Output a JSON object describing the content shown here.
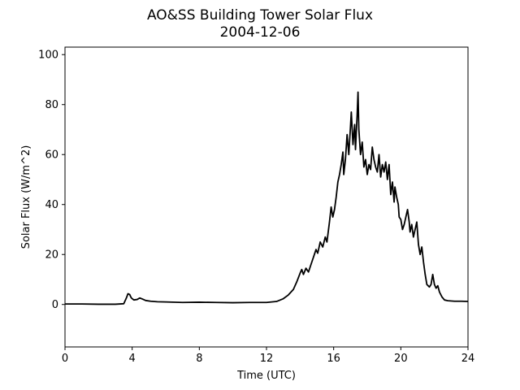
{
  "chart_data": {
    "type": "line",
    "title": "AO&SS Building Tower Solar Flux",
    "subtitle": "2004-12-06",
    "xlabel": "Time (UTC)",
    "ylabel": "Solar Flux (W/m^2)",
    "xlim": [
      0,
      24
    ],
    "ylim": [
      -17,
      103
    ],
    "xticks": [
      0,
      4,
      8,
      12,
      16,
      20,
      24
    ],
    "yticks": [
      0,
      20,
      40,
      60,
      80,
      100
    ],
    "grid": false,
    "series": [
      {
        "color": "#000000",
        "points": [
          [
            0.0,
            0.2
          ],
          [
            1.0,
            0.2
          ],
          [
            2.0,
            0.1
          ],
          [
            3.0,
            0.1
          ],
          [
            3.5,
            0.3
          ],
          [
            3.65,
            2.5
          ],
          [
            3.75,
            4.3
          ],
          [
            3.85,
            4.0
          ],
          [
            3.95,
            2.6
          ],
          [
            4.1,
            1.8
          ],
          [
            4.3,
            2.0
          ],
          [
            4.45,
            2.6
          ],
          [
            4.6,
            2.2
          ],
          [
            4.8,
            1.6
          ],
          [
            5.1,
            1.3
          ],
          [
            5.5,
            1.1
          ],
          [
            6.0,
            1.0
          ],
          [
            7.0,
            0.8
          ],
          [
            8.0,
            0.9
          ],
          [
            9.0,
            0.8
          ],
          [
            10.0,
            0.7
          ],
          [
            11.0,
            0.8
          ],
          [
            12.0,
            0.8
          ],
          [
            12.6,
            1.2
          ],
          [
            13.0,
            2.3
          ],
          [
            13.3,
            3.8
          ],
          [
            13.6,
            6.0
          ],
          [
            13.8,
            9.0
          ],
          [
            14.0,
            12.5
          ],
          [
            14.1,
            14.0
          ],
          [
            14.2,
            12.0
          ],
          [
            14.35,
            14.5
          ],
          [
            14.5,
            13.0
          ],
          [
            14.65,
            16.0
          ],
          [
            14.8,
            19.0
          ],
          [
            14.95,
            22.0
          ],
          [
            15.05,
            20.5
          ],
          [
            15.2,
            25.0
          ],
          [
            15.35,
            23.0
          ],
          [
            15.5,
            27.0
          ],
          [
            15.6,
            25.0
          ],
          [
            15.75,
            33.0
          ],
          [
            15.85,
            39.0
          ],
          [
            15.95,
            35.0
          ],
          [
            16.05,
            38.0
          ],
          [
            16.15,
            43.0
          ],
          [
            16.25,
            49.0
          ],
          [
            16.35,
            52.0
          ],
          [
            16.45,
            56.0
          ],
          [
            16.55,
            61.0
          ],
          [
            16.6,
            52.0
          ],
          [
            16.7,
            58.0
          ],
          [
            16.8,
            68.0
          ],
          [
            16.9,
            60.0
          ],
          [
            17.0,
            71.0
          ],
          [
            17.05,
            77.0
          ],
          [
            17.15,
            64.0
          ],
          [
            17.25,
            72.0
          ],
          [
            17.3,
            62.0
          ],
          [
            17.4,
            76.0
          ],
          [
            17.45,
            85.0
          ],
          [
            17.5,
            70.0
          ],
          [
            17.6,
            60.0
          ],
          [
            17.7,
            65.0
          ],
          [
            17.8,
            55.0
          ],
          [
            17.9,
            58.0
          ],
          [
            18.0,
            52.0
          ],
          [
            18.1,
            56.0
          ],
          [
            18.2,
            54.0
          ],
          [
            18.3,
            63.0
          ],
          [
            18.4,
            58.0
          ],
          [
            18.5,
            55.0
          ],
          [
            18.6,
            53.0
          ],
          [
            18.7,
            60.0
          ],
          [
            18.8,
            51.0
          ],
          [
            18.9,
            56.0
          ],
          [
            19.0,
            53.0
          ],
          [
            19.1,
            57.0
          ],
          [
            19.2,
            50.0
          ],
          [
            19.3,
            56.0
          ],
          [
            19.4,
            44.0
          ],
          [
            19.5,
            49.0
          ],
          [
            19.6,
            41.0
          ],
          [
            19.65,
            47.0
          ],
          [
            19.75,
            43.0
          ],
          [
            19.85,
            40.0
          ],
          [
            19.9,
            35.0
          ],
          [
            20.0,
            34.0
          ],
          [
            20.1,
            30.0
          ],
          [
            20.2,
            32.0
          ],
          [
            20.3,
            35.0
          ],
          [
            20.4,
            38.0
          ],
          [
            20.5,
            33.0
          ],
          [
            20.55,
            29.0
          ],
          [
            20.65,
            32.0
          ],
          [
            20.75,
            27.0
          ],
          [
            20.85,
            30.0
          ],
          [
            20.95,
            33.0
          ],
          [
            21.05,
            24.0
          ],
          [
            21.15,
            20.0
          ],
          [
            21.25,
            23.0
          ],
          [
            21.35,
            17.0
          ],
          [
            21.45,
            12.0
          ],
          [
            21.55,
            8.0
          ],
          [
            21.7,
            7.0
          ],
          [
            21.8,
            8.0
          ],
          [
            21.9,
            12.0
          ],
          [
            22.0,
            8.0
          ],
          [
            22.1,
            6.5
          ],
          [
            22.2,
            7.5
          ],
          [
            22.3,
            5.0
          ],
          [
            22.45,
            3.0
          ],
          [
            22.6,
            1.8
          ],
          [
            22.8,
            1.5
          ],
          [
            23.2,
            1.3
          ],
          [
            23.6,
            1.3
          ],
          [
            24.0,
            1.2
          ]
        ]
      }
    ]
  }
}
